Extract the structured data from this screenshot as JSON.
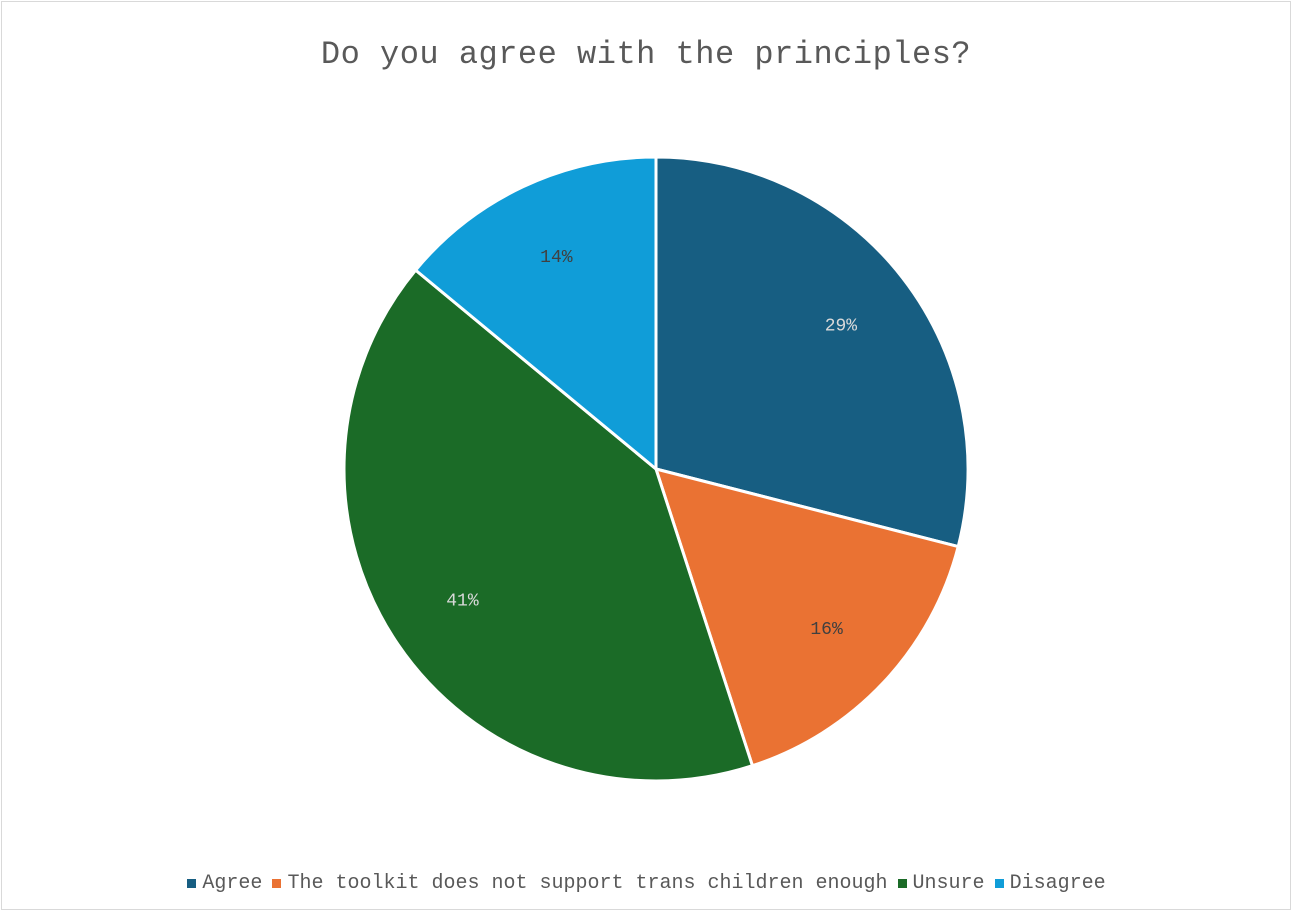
{
  "chart_data": {
    "type": "pie",
    "title": "Do you agree with the principles?",
    "categories": [
      "Agree",
      "The toolkit does not support trans children enough",
      "Unsure",
      "Disagree"
    ],
    "values": [
      29,
      16,
      41,
      14
    ],
    "labels": [
      "29%",
      "16%",
      "41%",
      "14%"
    ],
    "colors": [
      "#175e82",
      "#ea7233",
      "#1b6b27",
      "#109dd8"
    ],
    "label_colors": [
      "#d9d9d9",
      "#404040",
      "#d9d9d9",
      "#404040"
    ],
    "legend_position": "bottom",
    "start_angle": "12 o'clock",
    "direction": "clockwise"
  }
}
